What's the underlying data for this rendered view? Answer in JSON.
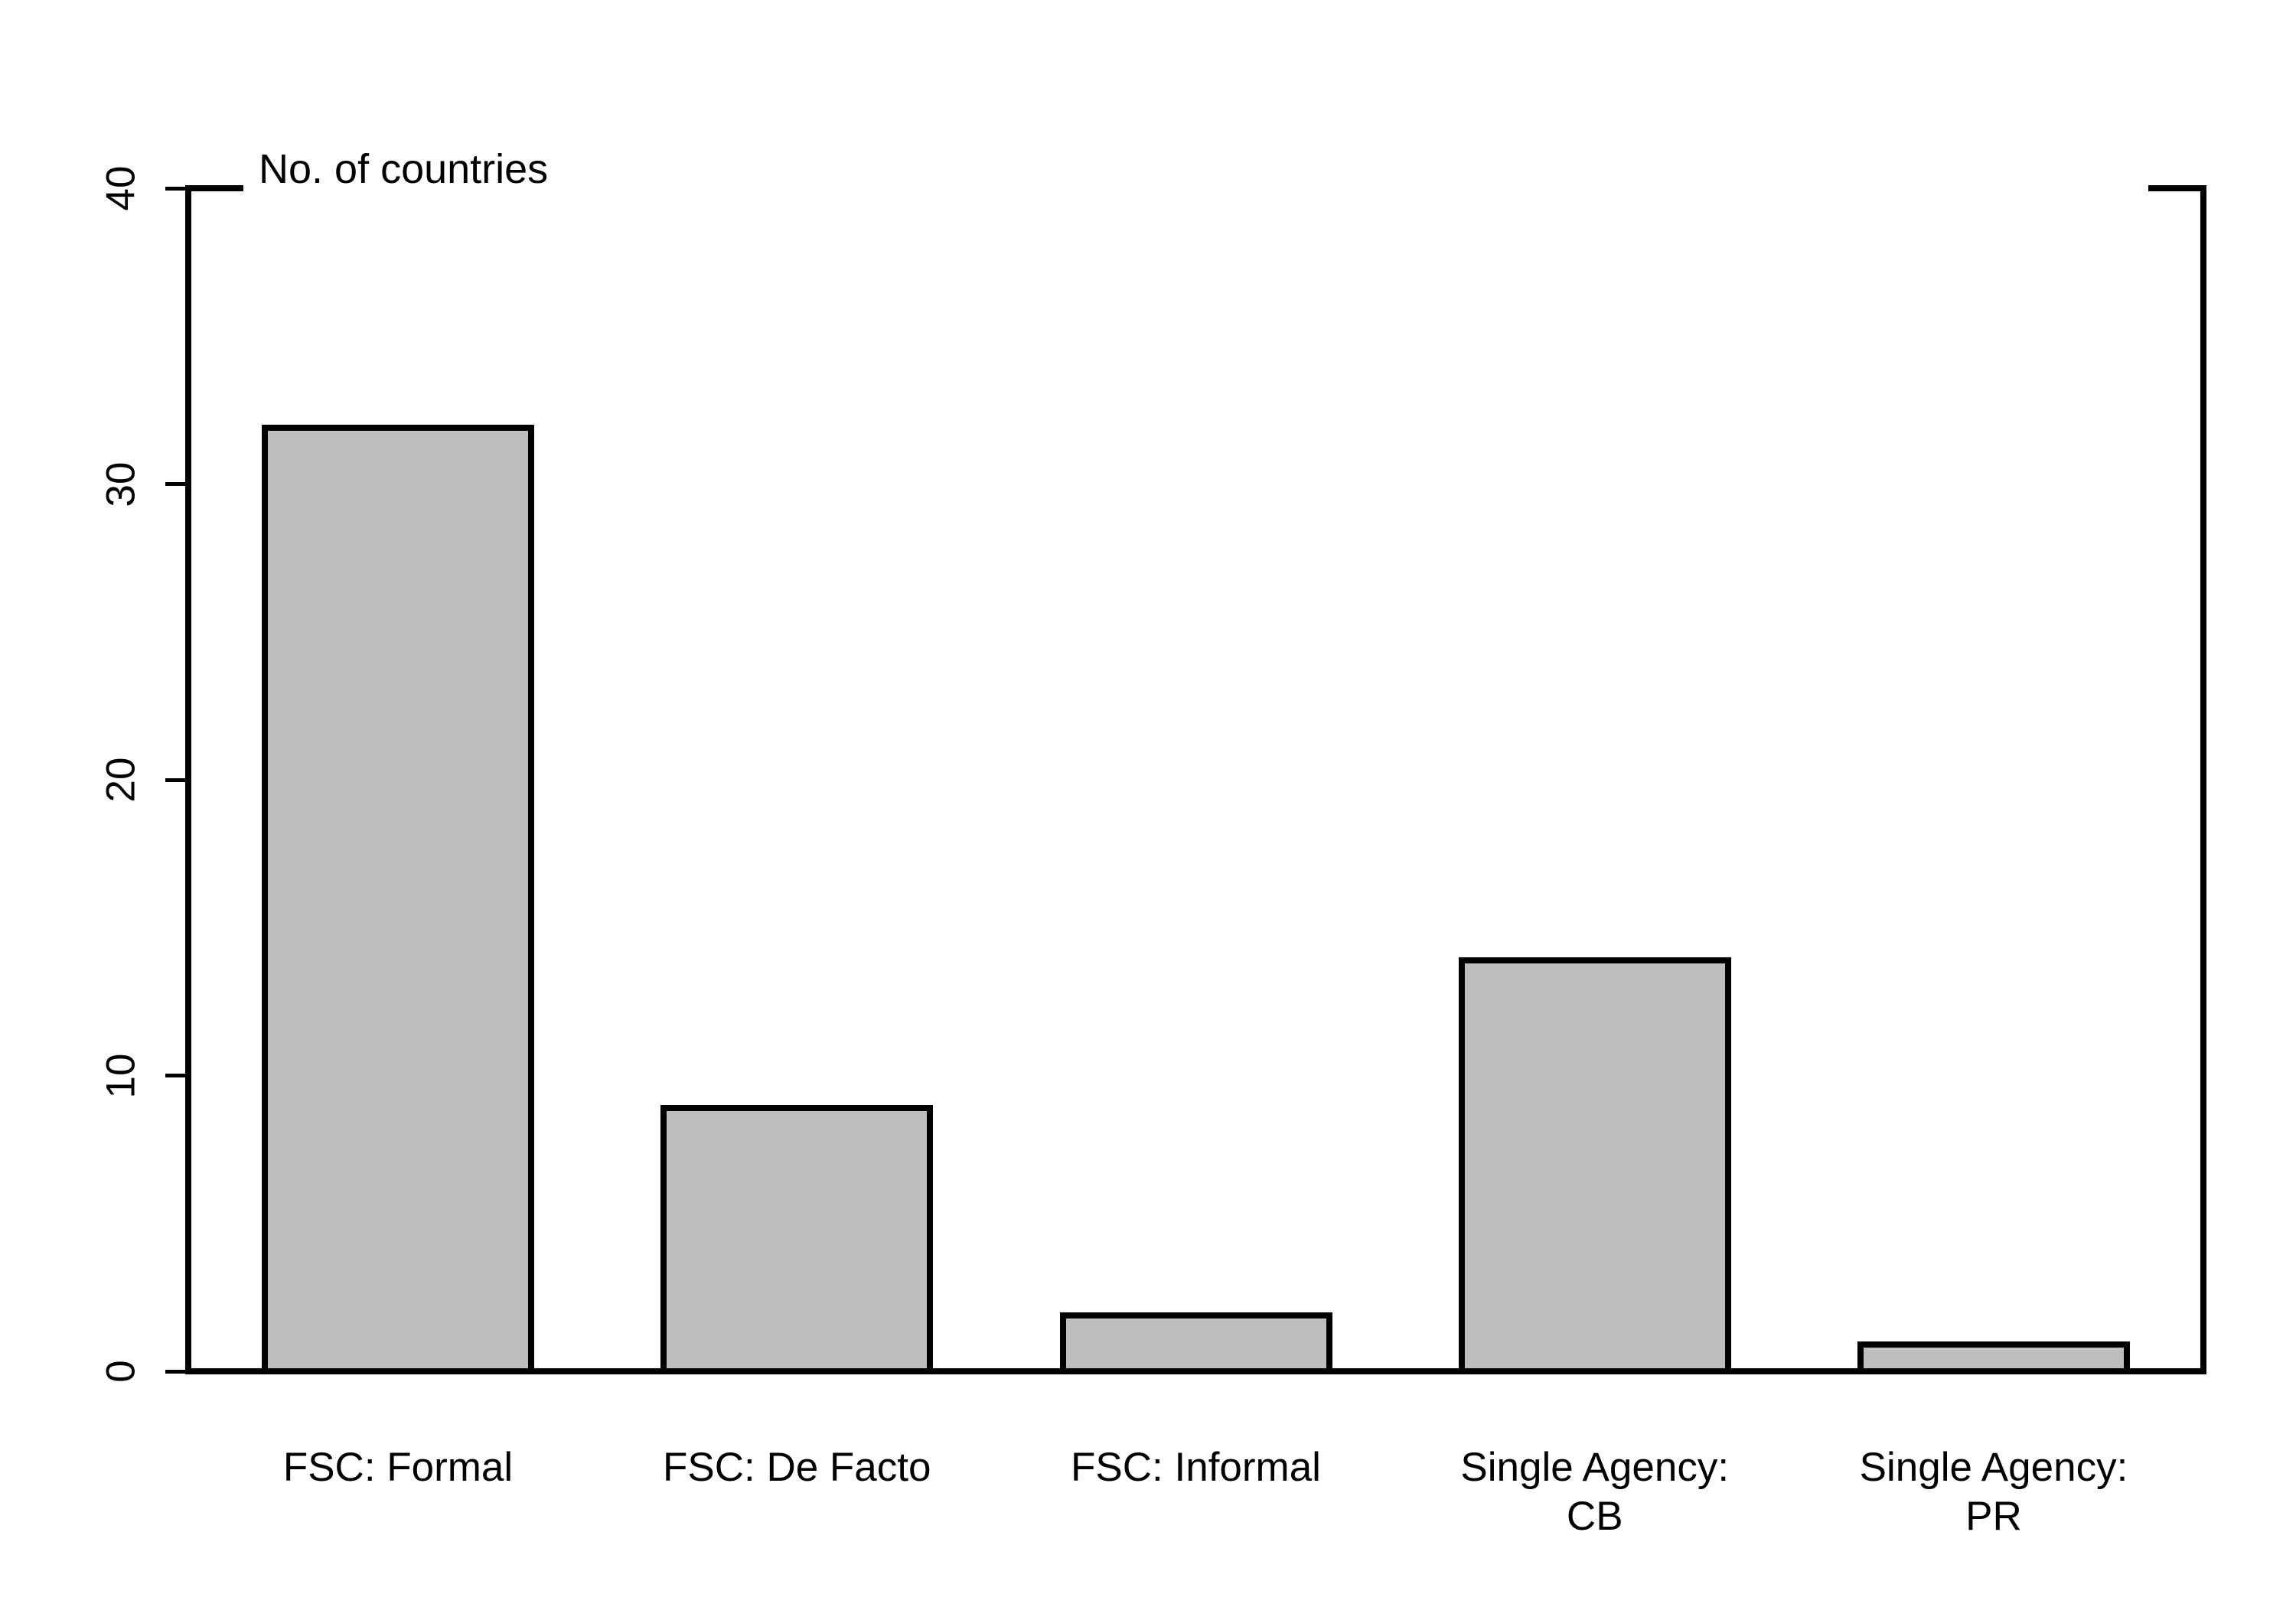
{
  "chart_data": {
    "type": "bar",
    "title": "No. of countries",
    "title_position": "top-left",
    "categories": [
      "FSC: Formal",
      "FSC: De Facto",
      "FSC: Informal",
      "Single Agency:\nCB",
      "Single Agency:\nPR"
    ],
    "values": [
      32,
      9,
      2,
      14,
      1
    ],
    "xlabel": "",
    "ylabel": "No. of countries",
    "ylim": [
      0,
      40
    ],
    "yticks": [
      0,
      10,
      20,
      30,
      40
    ],
    "grid": false,
    "legend": false,
    "colors": {
      "bar_fill": "#bebebe",
      "bar_border": "#000000",
      "axis": "#000000",
      "text": "#000000",
      "background": "#ffffff"
    }
  }
}
